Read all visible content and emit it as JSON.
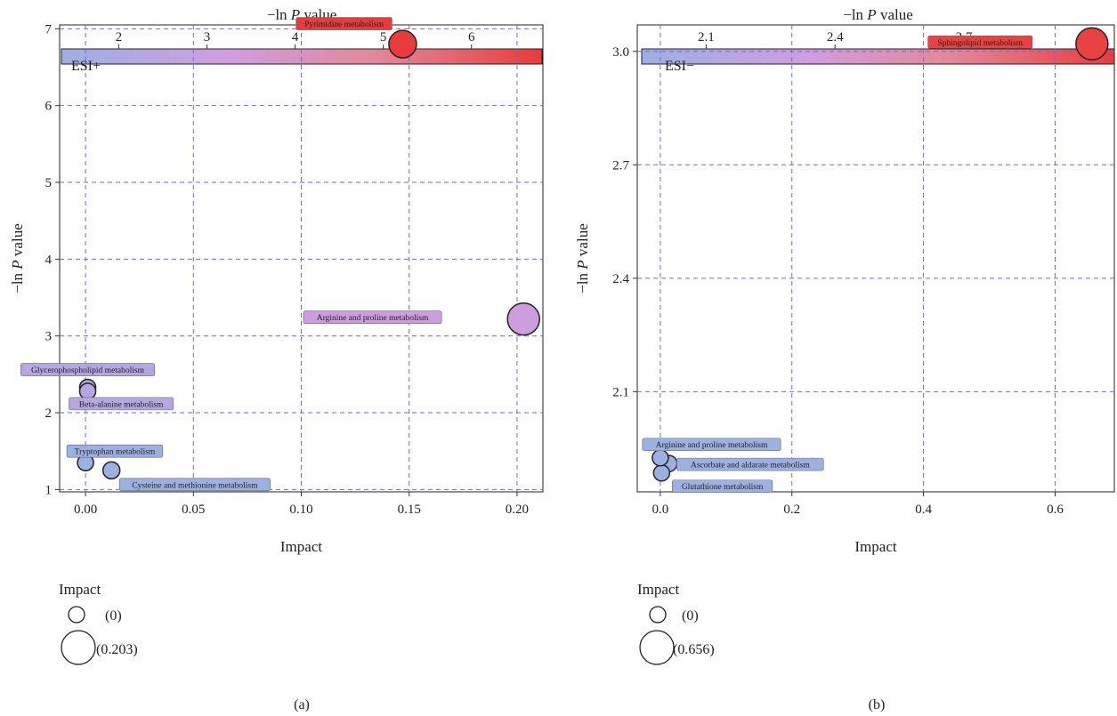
{
  "chart_data": [
    {
      "type": "scatter",
      "panel_label": "(a)",
      "mode_label": "ESI+",
      "xlabel": "Impact",
      "ylabel_prefix": "−ln ",
      "ylabel_italic": "P",
      "ylabel_suffix": " value",
      "colorbar": {
        "title_prefix": "−ln ",
        "title_italic": "P",
        "title_suffix": " value",
        "range": [
          1.35,
          6.8
        ],
        "ticks": [
          2,
          3,
          4,
          5,
          6
        ],
        "tick_labels": [
          "2",
          "3",
          "4",
          "5",
          "6"
        ]
      },
      "xlim": [
        -0.012,
        0.212
      ],
      "ylim": [
        0.97,
        7.05
      ],
      "xticks": [
        0.0,
        0.05,
        0.1,
        0.15,
        0.2
      ],
      "xtick_labels": [
        "0.00",
        "0.05",
        "0.10",
        "0.15",
        "0.20"
      ],
      "yticks": [
        1,
        2,
        3,
        4,
        5,
        6,
        7
      ],
      "ytick_labels": [
        "1",
        "2",
        "3",
        "4",
        "5",
        "6",
        "7"
      ],
      "size_legend": {
        "title": "Impact",
        "min_label": "(0)",
        "max_label": "(0.203)",
        "min": 0,
        "max": 0.203
      },
      "points": [
        {
          "name": "Pyrimidine metabolism",
          "x": 0.147,
          "y": 6.8
        },
        {
          "name": "Arginine and proline metabolism",
          "x": 0.203,
          "y": 3.22
        },
        {
          "name": "Glycerophospholipid metabolism",
          "x": 0.001,
          "y": 2.33
        },
        {
          "name": "Beta-alanine metabolism",
          "x": 0.001,
          "y": 2.28
        },
        {
          "name": "Tryptophan metabolism",
          "x": 0.0,
          "y": 1.35
        },
        {
          "name": "Cysteine and methionine metabolism",
          "x": 0.012,
          "y": 1.25
        }
      ],
      "grid": true
    },
    {
      "type": "scatter",
      "panel_label": "(b)",
      "mode_label": "ESI−",
      "xlabel": "Impact",
      "ylabel_prefix": "−ln ",
      "ylabel_italic": "P",
      "ylabel_suffix": " value",
      "colorbar": {
        "title_prefix": "−ln ",
        "title_italic": "P",
        "title_suffix": " value",
        "range": [
          1.95,
          3.05
        ],
        "ticks": [
          2.1,
          2.4,
          2.7,
          3.0
        ],
        "tick_labels": [
          "2.1",
          "2.4",
          "2.7",
          "3.0"
        ]
      },
      "xlim": [
        -0.035,
        0.69
      ],
      "ylim": [
        1.835,
        3.07
      ],
      "xticks": [
        0.0,
        0.2,
        0.4,
        0.6
      ],
      "xtick_labels": [
        "0.0",
        "0.2",
        "0.4",
        "0.6"
      ],
      "yticks": [
        2.1,
        2.4,
        2.7,
        3.0
      ],
      "ytick_labels": [
        "2.1",
        "2.4",
        "2.7",
        "3.0"
      ],
      "size_legend": {
        "title": "Impact",
        "min_label": "(0)",
        "max_label": "(0.656)",
        "min": 0,
        "max": 0.656
      },
      "points": [
        {
          "name": "Sphingolipid metabolism",
          "x": 0.656,
          "y": 3.02
        },
        {
          "name": "Arginine and proline metabolism",
          "x": 0.0,
          "y": 1.925
        },
        {
          "name": "Ascorbate and aldarate metabolism",
          "x": 0.013,
          "y": 1.91
        },
        {
          "name": "Glutathione metabolism",
          "x": 0.002,
          "y": 1.885
        }
      ],
      "grid": true
    }
  ],
  "colors": {
    "low": "#9db0e2",
    "mid": "#cf9de0",
    "mid2": "#e3889a",
    "high": "#e83c3c",
    "grid": "#6b6bd6",
    "point_stroke": "#222222"
  }
}
